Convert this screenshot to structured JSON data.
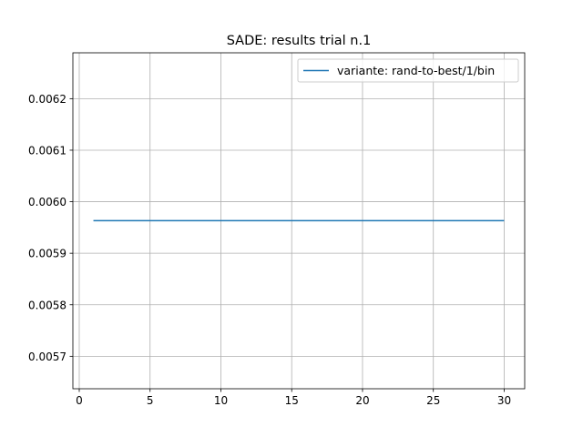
{
  "chart_data": {
    "type": "line",
    "title": "SADE: results trial n.1",
    "xlabel": "",
    "ylabel": "",
    "xlim": [
      -0.45,
      31.45
    ],
    "ylim": [
      0.005637,
      0.006289
    ],
    "xticks": [
      0,
      5,
      10,
      15,
      20,
      25,
      30
    ],
    "xtick_labels": [
      "0",
      "5",
      "10",
      "15",
      "20",
      "25",
      "30"
    ],
    "yticks": [
      0.0057,
      0.0058,
      0.0059,
      0.006,
      0.0061,
      0.0062
    ],
    "ytick_labels": [
      "0.0057",
      "0.0058",
      "0.0059",
      "0.0060",
      "0.0061",
      "0.0062"
    ],
    "grid": true,
    "legend_position": "top-right",
    "series": [
      {
        "name": "variante: rand-to-best/1/bin",
        "color": "#1f77b4",
        "x": [
          1,
          30
        ],
        "y": [
          0.0059632,
          0.0059632
        ]
      }
    ]
  }
}
